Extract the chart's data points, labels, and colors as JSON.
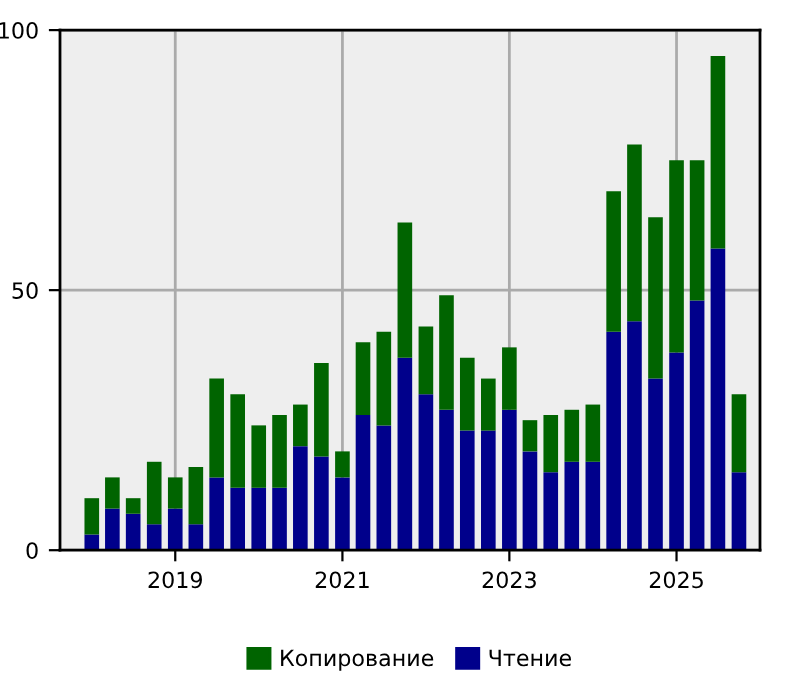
{
  "chart_data": {
    "type": "bar",
    "stacked": true,
    "x": [
      "2018-01",
      "2018-04",
      "2018-07",
      "2018-10",
      "2019-01",
      "2019-04",
      "2019-07",
      "2019-10",
      "2020-01",
      "2020-04",
      "2020-07",
      "2020-10",
      "2021-01",
      "2021-04",
      "2021-07",
      "2021-10",
      "2022-01",
      "2022-04",
      "2022-07",
      "2022-10",
      "2023-01",
      "2023-04",
      "2023-07",
      "2023-10",
      "2024-01",
      "2024-04",
      "2024-07",
      "2024-10",
      "2025-01",
      "2025-04",
      "2025-07",
      "2025-10"
    ],
    "series": [
      {
        "name": "Чтение",
        "color": "#00008b",
        "values": [
          3,
          8,
          7,
          5,
          8,
          5,
          14,
          12,
          12,
          12,
          20,
          18,
          14,
          26,
          24,
          37,
          30,
          27,
          23,
          23,
          27,
          19,
          15,
          17,
          17,
          42,
          44,
          33,
          38,
          48,
          58,
          15
        ]
      },
      {
        "name": "Копирование",
        "color": "#006400",
        "values": [
          7,
          6,
          3,
          12,
          6,
          11,
          19,
          18,
          12,
          14,
          8,
          18,
          5,
          14,
          18,
          26,
          13,
          22,
          14,
          10,
          12,
          6,
          11,
          10,
          11,
          27,
          34,
          31,
          37,
          27,
          37,
          15
        ]
      }
    ],
    "xlim": [
      "2017-08-15",
      "2026-01-01"
    ],
    "xticks": [
      {
        "value": "2019-01-01",
        "label": "2019"
      },
      {
        "value": "2021-01-01",
        "label": "2021"
      },
      {
        "value": "2023-01-01",
        "label": "2023"
      },
      {
        "value": "2025-01-01",
        "label": "2025"
      }
    ],
    "ylim": [
      0,
      100
    ],
    "yticks": [
      0,
      50,
      100
    ],
    "grid": true,
    "legend": "bottom"
  }
}
